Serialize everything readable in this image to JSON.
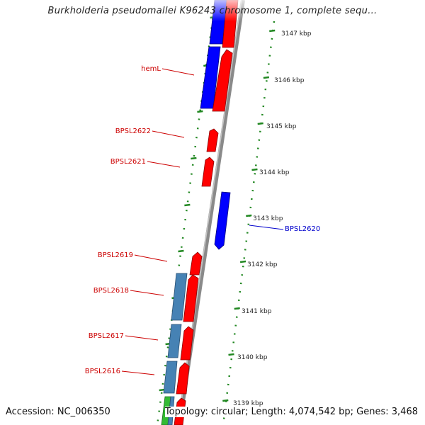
{
  "title": "Burkholderia pseudomallei K96243 chromosome 1, complete sequ...",
  "footer": {
    "accession": "Accession: NC_006350",
    "topology": "Topology: circular; Length: 4,074,542 bp; Genes: 3,468"
  },
  "ticks": [
    "3147 kbp",
    "3146 kbp",
    "3145 kbp",
    "3144 kbp",
    "3143 kbp",
    "3142 kbp",
    "3141 kbp",
    "3140 kbp",
    "3139 kbp"
  ],
  "genes": [
    {
      "name": "hemL",
      "color": "#cc0000"
    },
    {
      "name": "BPSL2622",
      "color": "#cc0000"
    },
    {
      "name": "BPSL2621",
      "color": "#cc0000"
    },
    {
      "name": "BPSL2620",
      "color": "#0000cc"
    },
    {
      "name": "BPSL2619",
      "color": "#cc0000"
    },
    {
      "name": "BPSL2618",
      "color": "#cc0000"
    },
    {
      "name": "BPSL2617",
      "color": "#cc0000"
    },
    {
      "name": "BPSL2616",
      "color": "#cc0000"
    }
  ],
  "colors": {
    "forward_strand": "#ff0000",
    "reverse_strand": "#0000ff",
    "other_feature": "#4682b4",
    "rna_feature": "#33bb33",
    "backbone": "#888888",
    "tick_marks": "#228822"
  }
}
